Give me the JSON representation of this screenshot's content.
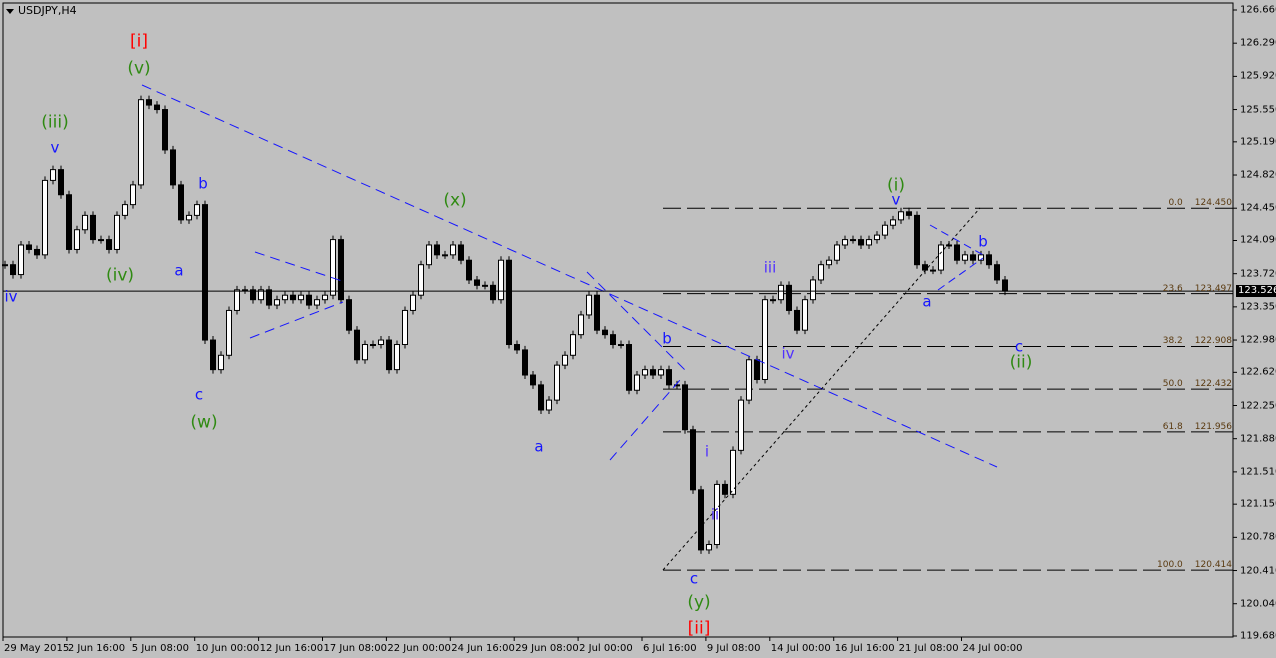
{
  "header": {
    "symbol": "USDJPY,H4"
  },
  "current_price": "123.526",
  "colors": {
    "background": "#c0c0c0",
    "wave_green": "#2f8a12",
    "wave_blue": "#1515ff",
    "wave_violet": "#5030ff",
    "wave_red": "#ff0000",
    "trendline": "#1515ff"
  },
  "chart_data": {
    "type": "candlestick",
    "title": "USDJPY,H4",
    "ylim": [
      119.68,
      126.66
    ],
    "price_ticks": [
      "126.660",
      "126.290",
      "125.920",
      "125.550",
      "125.190",
      "124.820",
      "124.450",
      "124.090",
      "123.720",
      "123.350",
      "122.980",
      "122.620",
      "122.250",
      "121.880",
      "121.510",
      "121.150",
      "120.780",
      "120.410",
      "120.040",
      "119.680"
    ],
    "date_ticks": [
      "29 May 2015",
      "2 Jun 16:00",
      "5 Jun 08:00",
      "10 Jun 00:00",
      "12 Jun 16:00",
      "17 Jun 08:00",
      "22 Jun 00:00",
      "24 Jun 16:00",
      "29 Jun 08:00",
      "2 Jul 00:00",
      "6 Jul 16:00",
      "9 Jul 08:00",
      "14 Jul 00:00",
      "16 Jul 16:00",
      "21 Jul 08:00",
      "24 Jul 00:00"
    ],
    "closes": [
      123.82,
      123.71,
      124.04,
      123.99,
      123.93,
      124.76,
      124.88,
      124.6,
      123.99,
      124.21,
      124.37,
      124.1,
      124.1,
      123.99,
      124.37,
      124.49,
      124.71,
      125.66,
      125.6,
      125.55,
      125.1,
      124.71,
      124.32,
      124.37,
      124.49,
      122.98,
      122.65,
      122.81,
      123.31,
      123.54,
      123.54,
      123.43,
      123.54,
      123.37,
      123.43,
      123.48,
      123.43,
      123.48,
      123.37,
      123.43,
      123.48,
      124.1,
      123.43,
      123.09,
      122.76,
      122.93,
      122.93,
      122.98,
      122.65,
      122.93,
      123.31,
      123.48,
      123.82,
      124.04,
      123.93,
      123.93,
      124.04,
      123.87,
      123.65,
      123.59,
      123.59,
      123.43,
      123.87,
      122.93,
      122.87,
      122.59,
      122.48,
      122.2,
      122.31,
      122.7,
      122.81,
      123.04,
      123.26,
      123.48,
      123.09,
      123.04,
      122.93,
      122.93,
      122.42,
      122.59,
      122.65,
      122.59,
      122.65,
      122.48,
      122.48,
      121.98,
      121.31,
      120.64,
      120.7,
      121.37,
      121.26,
      121.75,
      122.31,
      122.76,
      122.54,
      123.43,
      123.43,
      123.59,
      123.31,
      123.09,
      123.43,
      123.65,
      123.82,
      123.87,
      124.04,
      124.1,
      124.1,
      124.04,
      124.1,
      124.15,
      124.26,
      124.32,
      124.41,
      124.37,
      123.82,
      123.76,
      123.76,
      124.04,
      124.04,
      123.87,
      123.93,
      123.87,
      123.93,
      123.82,
      123.65,
      123.526
    ],
    "fibonacci": [
      {
        "level": "0.0",
        "price": "124.450"
      },
      {
        "level": "23.6",
        "price": "123.497"
      },
      {
        "level": "38.2",
        "price": "122.908"
      },
      {
        "level": "50.0",
        "price": "122.432"
      },
      {
        "level": "61.8",
        "price": "121.956"
      },
      {
        "level": "100.0",
        "price": "120.414"
      }
    ]
  },
  "waves": {
    "w1": "[i]",
    "w2": "(v)",
    "w3": "(iii)",
    "w4": "v",
    "w5": "(iv)",
    "w6": "iv",
    "w7": "a",
    "w8": "b",
    "w9": "c",
    "w10": "(w)",
    "w11": "(x)",
    "w12": "a",
    "w13": "b",
    "w14": "c",
    "w15": "(y)",
    "w16": "[ii]",
    "w17": "i",
    "w18": "ii",
    "w19": "iii",
    "w20": "iv",
    "w21": "(i)",
    "w22": "v",
    "w23": "a",
    "w24": "b",
    "w25": "c",
    "w26": "(ii)"
  }
}
